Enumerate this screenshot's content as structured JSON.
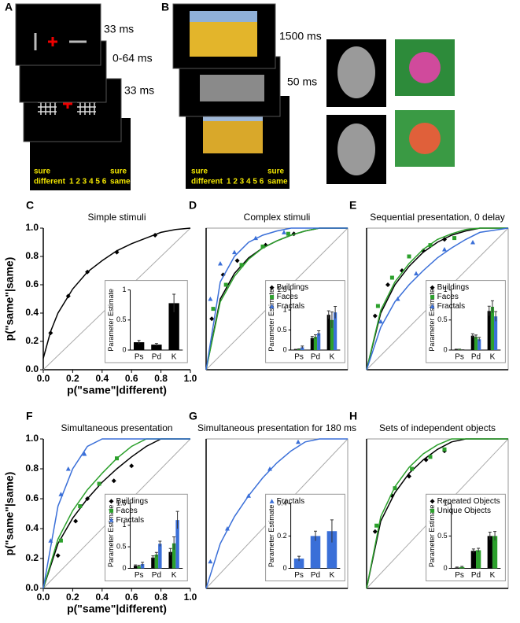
{
  "stimuli": {
    "a": {
      "label": "A",
      "timings": [
        "33 ms",
        "0-64 ms",
        "33 ms"
      ],
      "scale": {
        "left": [
          "sure",
          "different"
        ],
        "numbers": "1 2 3 4 5 6",
        "right": [
          "sure",
          "same"
        ]
      }
    },
    "b": {
      "label": "B",
      "timings": [
        "1500 ms",
        "50 ms"
      ],
      "scale": {
        "left": [
          "sure",
          "different"
        ],
        "numbers": "1 2 3 4 5 6",
        "right": [
          "sure",
          "same"
        ]
      }
    }
  },
  "chart_data": [
    {
      "type": "roc",
      "label": "C",
      "title": "Simple stimuli",
      "xlabel": "p(\"same\"|different)",
      "ylabel": "p(\"same\"|same)",
      "xlim": [
        0,
        1
      ],
      "ylim": [
        0,
        1
      ],
      "xticks": [
        {
          "value": 0,
          "label": "0.0"
        },
        {
          "value": 0.2,
          "label": "0.2"
        },
        {
          "value": 0.4,
          "label": "0.4"
        },
        {
          "value": 0.6,
          "label": "0.6"
        },
        {
          "value": 0.8,
          "label": "0.8"
        },
        {
          "value": 1,
          "label": "1.0"
        }
      ],
      "yticks": [
        {
          "value": 0,
          "label": "0.0"
        },
        {
          "value": 0.2,
          "label": "0.2"
        },
        {
          "value": 0.4,
          "label": "0.4"
        },
        {
          "value": 0.6,
          "label": "0.6"
        },
        {
          "value": 0.8,
          "label": "0.8"
        },
        {
          "value": 1,
          "label": "1.0"
        }
      ],
      "box": false,
      "series": [
        {
          "color": "#000000",
          "marker": "diamond",
          "x": [
            0.05,
            0.17,
            0.3,
            0.5,
            0.76
          ],
          "y": [
            0.26,
            0.52,
            0.69,
            0.83,
            0.95
          ],
          "fit_x": [
            0,
            0.05,
            0.1,
            0.2,
            0.3,
            0.4,
            0.5,
            0.6,
            0.7,
            0.8,
            0.9,
            1
          ],
          "fit_y": [
            0.08,
            0.27,
            0.4,
            0.57,
            0.69,
            0.77,
            0.84,
            0.89,
            0.93,
            0.97,
            0.99,
            1
          ]
        }
      ],
      "inset": {
        "type": "bar",
        "ylabel": "Parameter Estimate",
        "categories": [
          "Ps",
          "Pd",
          "K"
        ],
        "ylim": [
          0,
          1
        ],
        "yticks": [
          0,
          0.5,
          1
        ],
        "series": [
          {
            "color": "#000000",
            "values": [
              0.13,
              0.09,
              0.78
            ],
            "errors": [
              0.03,
              0.02,
              0.15
            ]
          }
        ]
      }
    },
    {
      "type": "roc",
      "label": "D",
      "title": "Complex stimuli",
      "xlim": [
        0,
        1
      ],
      "ylim": [
        0,
        1
      ],
      "box": true,
      "series": [
        {
          "name": "Buildings",
          "color": "#000000",
          "marker": "diamond",
          "x": [
            0.04,
            0.12,
            0.22,
            0.42,
            0.62
          ],
          "y": [
            0.36,
            0.67,
            0.77,
            0.88,
            0.96
          ],
          "fit_x": [
            0,
            0.1,
            0.2,
            0.3,
            0.4,
            0.5,
            0.6,
            0.7,
            0.8,
            1
          ],
          "fit_y": [
            0,
            0.5,
            0.68,
            0.79,
            0.86,
            0.91,
            0.95,
            0.98,
            1,
            1
          ]
        },
        {
          "name": "Faces",
          "color": "#2ca02c",
          "marker": "square",
          "x": [
            0.05,
            0.14,
            0.25,
            0.4,
            0.58
          ],
          "y": [
            0.43,
            0.6,
            0.74,
            0.87,
            0.96
          ],
          "fit_x": [
            0,
            0.1,
            0.2,
            0.3,
            0.4,
            0.5,
            0.6,
            0.7,
            0.8,
            1
          ],
          "fit_y": [
            0,
            0.48,
            0.66,
            0.78,
            0.86,
            0.91,
            0.95,
            0.98,
            1,
            1
          ]
        },
        {
          "name": "Fractals",
          "color": "#3a6fd8",
          "marker": "triangle",
          "x": [
            0.03,
            0.1,
            0.2,
            0.35,
            0.55
          ],
          "y": [
            0.5,
            0.75,
            0.83,
            0.93,
            0.97
          ],
          "fit_x": [
            0,
            0.1,
            0.2,
            0.3,
            0.4,
            0.5,
            0.6,
            0.7,
            0.8,
            1
          ],
          "fit_y": [
            0,
            0.62,
            0.8,
            0.9,
            0.95,
            0.98,
            1,
            1,
            1,
            1
          ]
        }
      ],
      "inset": {
        "type": "bar",
        "ylabel": "Parameter Estimate",
        "categories": [
          "Ps",
          "Pd",
          "K"
        ],
        "ylim": [
          0,
          1.5
        ],
        "yticks": [
          0,
          0.5,
          1,
          1.5
        ],
        "series": [
          {
            "color": "#000000",
            "values": [
              0.01,
              0.3,
              0.88
            ],
            "errors": [
              0.01,
              0.04,
              0.1
            ]
          },
          {
            "color": "#2ca02c",
            "values": [
              0.02,
              0.33,
              0.75
            ],
            "errors": [
              0.01,
              0.05,
              0.2
            ]
          },
          {
            "color": "#3a6fd8",
            "values": [
              0.07,
              0.42,
              0.94
            ],
            "errors": [
              0.03,
              0.06,
              0.15
            ]
          }
        ]
      }
    },
    {
      "type": "roc",
      "label": "E",
      "title": "Sequential presentation, 0 delay",
      "xlim": [
        0,
        1
      ],
      "ylim": [
        0,
        1
      ],
      "box": true,
      "series": [
        {
          "name": "Buildings",
          "color": "#000000",
          "marker": "diamond",
          "x": [
            0.06,
            0.15,
            0.25,
            0.4,
            0.55
          ],
          "y": [
            0.38,
            0.6,
            0.7,
            0.84,
            0.92
          ],
          "fit_x": [
            0,
            0.1,
            0.2,
            0.3,
            0.4,
            0.5,
            0.6,
            0.7,
            0.8,
            1
          ],
          "fit_y": [
            0,
            0.4,
            0.6,
            0.73,
            0.83,
            0.9,
            0.95,
            0.98,
            1,
            1
          ]
        },
        {
          "name": "Faces",
          "color": "#2ca02c",
          "marker": "square",
          "x": [
            0.08,
            0.18,
            0.3,
            0.45,
            0.62
          ],
          "y": [
            0.45,
            0.65,
            0.8,
            0.88,
            0.93
          ],
          "fit_x": [
            0,
            0.1,
            0.2,
            0.3,
            0.4,
            0.5,
            0.6,
            0.7,
            0.8,
            1
          ],
          "fit_y": [
            0,
            0.42,
            0.62,
            0.75,
            0.85,
            0.92,
            0.96,
            0.99,
            1,
            1
          ]
        },
        {
          "name": "Fractals",
          "color": "#3a6fd8",
          "marker": "triangle",
          "x": [
            0.1,
            0.22,
            0.35,
            0.55,
            0.75
          ],
          "y": [
            0.34,
            0.5,
            0.68,
            0.85,
            0.9
          ],
          "fit_x": [
            0,
            0.1,
            0.2,
            0.3,
            0.4,
            0.5,
            0.6,
            0.7,
            0.8,
            1
          ],
          "fit_y": [
            0,
            0.3,
            0.48,
            0.6,
            0.7,
            0.79,
            0.86,
            0.92,
            0.97,
            1
          ]
        }
      ],
      "inset": {
        "type": "bar",
        "ylabel": "Parameter Estimate",
        "categories": [
          "Ps",
          "Pd",
          "K"
        ],
        "ylim": [
          0,
          1
        ],
        "yticks": [
          0,
          0.5,
          1
        ],
        "series": [
          {
            "color": "#000000",
            "values": [
              0.01,
              0.24,
              0.65
            ],
            "errors": [
              0.005,
              0.03,
              0.08
            ]
          },
          {
            "color": "#2ca02c",
            "values": [
              0.01,
              0.22,
              0.72
            ],
            "errors": [
              0.005,
              0.03,
              0.1
            ]
          },
          {
            "color": "#3a6fd8",
            "values": [
              0,
              0.18,
              0.56
            ],
            "errors": [
              0.005,
              0.03,
              0.08
            ]
          }
        ]
      }
    },
    {
      "type": "roc",
      "label": "F",
      "title": "Simultaneous presentation",
      "xlabel": "p(\"same\"|different)",
      "ylabel": "p(\"same\"|same)",
      "xlim": [
        0,
        1
      ],
      "ylim": [
        0,
        1
      ],
      "xticks": [
        {
          "value": 0,
          "label": "0.0"
        },
        {
          "value": 0.2,
          "label": "0.2"
        },
        {
          "value": 0.4,
          "label": "0.4"
        },
        {
          "value": 0.6,
          "label": "0.6"
        },
        {
          "value": 0.8,
          "label": "0.8"
        },
        {
          "value": 1,
          "label": "1.0"
        }
      ],
      "yticks": [
        {
          "value": 0,
          "label": "0.0"
        },
        {
          "value": 0.2,
          "label": "0.2"
        },
        {
          "value": 0.4,
          "label": "0.4"
        },
        {
          "value": 0.6,
          "label": "0.6"
        },
        {
          "value": 0.8,
          "label": "0.8"
        },
        {
          "value": 1,
          "label": "1.0"
        }
      ],
      "box": false,
      "series": [
        {
          "name": "Buildings",
          "color": "#000000",
          "marker": "diamond",
          "x": [
            0.1,
            0.22,
            0.3,
            0.48,
            0.6
          ],
          "y": [
            0.22,
            0.45,
            0.6,
            0.72,
            0.82
          ],
          "fit_x": [
            0,
            0.1,
            0.2,
            0.3,
            0.4,
            0.5,
            0.6,
            0.7,
            0.8,
            0.9,
            1
          ],
          "fit_y": [
            0,
            0.3,
            0.47,
            0.6,
            0.71,
            0.8,
            0.88,
            0.95,
            1,
            1,
            1
          ]
        },
        {
          "name": "Faces",
          "color": "#2ca02c",
          "marker": "square",
          "x": [
            0.12,
            0.25,
            0.38,
            0.5
          ],
          "y": [
            0.32,
            0.55,
            0.7,
            0.87
          ],
          "fit_x": [
            0,
            0.1,
            0.2,
            0.3,
            0.4,
            0.5,
            0.6,
            0.7,
            0.8,
            0.9,
            1
          ],
          "fit_y": [
            0,
            0.33,
            0.52,
            0.66,
            0.77,
            0.87,
            0.95,
            1,
            1,
            1,
            1
          ]
        },
        {
          "name": "Fractals",
          "color": "#3a6fd8",
          "marker": "triangle",
          "x": [
            0.05,
            0.12,
            0.17,
            0.28
          ],
          "y": [
            0.32,
            0.63,
            0.8,
            0.9
          ],
          "fit_x": [
            0,
            0.1,
            0.2,
            0.3,
            0.4,
            0.5,
            0.6,
            0.7,
            0.8,
            0.9,
            1
          ],
          "fit_y": [
            0,
            0.55,
            0.8,
            0.95,
            1,
            1,
            1,
            1,
            1,
            1,
            1
          ]
        }
      ],
      "inset": {
        "type": "bar",
        "ylabel": "Parameter Estimate",
        "categories": [
          "Ps",
          "Pd",
          "K"
        ],
        "ylim": [
          0,
          1.5
        ],
        "yticks": [
          0,
          0.5,
          1,
          1.5
        ],
        "series": [
          {
            "color": "#000000",
            "values": [
              0.06,
              0.25,
              0.38
            ],
            "errors": [
              0.02,
              0.04,
              0.08
            ]
          },
          {
            "color": "#2ca02c",
            "values": [
              0.05,
              0.32,
              0.58
            ],
            "errors": [
              0.02,
              0.05,
              0.15
            ]
          },
          {
            "color": "#3a6fd8",
            "values": [
              0.1,
              0.57,
              1.12
            ],
            "errors": [
              0.04,
              0.06,
              0.2
            ]
          }
        ]
      }
    },
    {
      "type": "roc",
      "label": "G",
      "title": "Simultaneous presentation for 180 ms",
      "xlim": [
        0,
        1
      ],
      "ylim": [
        0,
        1
      ],
      "box": true,
      "series": [
        {
          "name": "Fractals",
          "color": "#3a6fd8",
          "marker": "triangle",
          "x": [
            0.03,
            0.15,
            0.3,
            0.45,
            0.65
          ],
          "y": [
            0.18,
            0.4,
            0.62,
            0.8,
            0.98
          ],
          "fit_x": [
            0,
            0.1,
            0.2,
            0.3,
            0.4,
            0.5,
            0.6,
            0.7,
            0.8,
            0.9,
            1
          ],
          "fit_y": [
            0,
            0.3,
            0.48,
            0.62,
            0.74,
            0.84,
            0.92,
            0.98,
            1,
            1,
            1
          ]
        }
      ],
      "inset": {
        "type": "bar",
        "ylabel": "Parameter Estimate",
        "categories": [
          "Ps",
          "Pd",
          "K"
        ],
        "ylim": [
          0,
          0.4
        ],
        "yticks": [
          0,
          0.2,
          0.4
        ],
        "series": [
          {
            "color": "#3a6fd8",
            "values": [
              0.06,
              0.2,
              0.23
            ],
            "errors": [
              0.015,
              0.03,
              0.07
            ]
          }
        ]
      }
    },
    {
      "type": "roc",
      "label": "H",
      "title": "Sets of independent objects",
      "xlim": [
        0,
        1
      ],
      "ylim": [
        0,
        1
      ],
      "box": true,
      "series": [
        {
          "name": "Repeated Objects",
          "color": "#000000",
          "marker": "diamond",
          "x": [
            0.06,
            0.18,
            0.3,
            0.42,
            0.55
          ],
          "y": [
            0.38,
            0.62,
            0.75,
            0.86,
            0.92
          ],
          "fit_x": [
            0,
            0.1,
            0.2,
            0.3,
            0.4,
            0.5,
            0.6,
            0.7,
            0.8,
            0.9,
            1
          ],
          "fit_y": [
            0,
            0.45,
            0.64,
            0.77,
            0.86,
            0.93,
            0.98,
            1,
            1,
            1,
            1
          ]
        },
        {
          "name": "Unique Objects",
          "color": "#2ca02c",
          "marker": "square",
          "x": [
            0.07,
            0.2,
            0.32,
            0.45,
            0.55
          ],
          "y": [
            0.42,
            0.67,
            0.8,
            0.88,
            0.93
          ],
          "fit_x": [
            0,
            0.1,
            0.2,
            0.3,
            0.4,
            0.5,
            0.6,
            0.7,
            0.8,
            0.9,
            1
          ],
          "fit_y": [
            0,
            0.48,
            0.68,
            0.81,
            0.9,
            0.96,
            1,
            1,
            1,
            1,
            1
          ]
        }
      ],
      "inset": {
        "type": "bar",
        "ylabel": "Parameter Estimate",
        "categories": [
          "Ps",
          "Pd",
          "K"
        ],
        "ylim": [
          0,
          1
        ],
        "yticks": [
          0,
          0.5,
          1
        ],
        "series": [
          {
            "color": "#000000",
            "values": [
              0.01,
              0.27,
              0.5
            ],
            "errors": [
              0.01,
              0.03,
              0.06
            ]
          },
          {
            "color": "#2ca02c",
            "values": [
              0.02,
              0.28,
              0.5
            ],
            "errors": [
              0.01,
              0.03,
              0.07
            ]
          }
        ]
      }
    }
  ]
}
